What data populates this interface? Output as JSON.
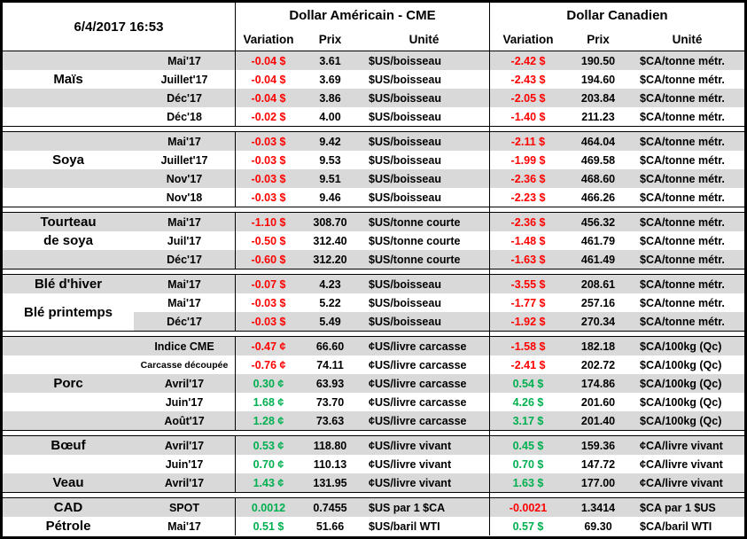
{
  "colors": {
    "negative": "#FF0000",
    "positive": "#00B050",
    "stripe": "#D9D9D9",
    "border": "#000000"
  },
  "chart_data": {
    "type": "table",
    "timestamp": "6/4/2017 16:53",
    "us_group": {
      "title": "Dollar Américain - CME",
      "cols": {
        "variation": "Variation",
        "prix": "Prix",
        "unite": "Unité"
      }
    },
    "ca_group": {
      "title": "Dollar Canadien",
      "cols": {
        "variation": "Variation",
        "prix": "Prix",
        "unite": "Unité"
      }
    },
    "sections": [
      {
        "id": "mais",
        "labels": [
          {
            "text": "Maïs",
            "row": 1,
            "span": 1
          }
        ],
        "rows": [
          {
            "month": "Mai'17",
            "us_var": "-0.04 $",
            "us_prix": "3.61",
            "us_unit": "$US/boisseau",
            "ca_var": "-2.42 $",
            "ca_prix": "190.50",
            "ca_unit": "$CA/tonne métr."
          },
          {
            "month": "Juillet'17",
            "us_var": "-0.04 $",
            "us_prix": "3.69",
            "us_unit": "$US/boisseau",
            "ca_var": "-2.43 $",
            "ca_prix": "194.60",
            "ca_unit": "$CA/tonne métr."
          },
          {
            "month": "Déc'17",
            "us_var": "-0.04 $",
            "us_prix": "3.86",
            "us_unit": "$US/boisseau",
            "ca_var": "-2.05 $",
            "ca_prix": "203.84",
            "ca_unit": "$CA/tonne métr."
          },
          {
            "month": "Déc'18",
            "us_var": "-0.02 $",
            "us_prix": "4.00",
            "us_unit": "$US/boisseau",
            "ca_var": "-1.40 $",
            "ca_prix": "211.23",
            "ca_unit": "$CA/tonne métr."
          }
        ]
      },
      {
        "id": "soya",
        "labels": [
          {
            "text": "Soya",
            "row": 1,
            "span": 1
          }
        ],
        "rows": [
          {
            "month": "Mai'17",
            "us_var": "-0.03 $",
            "us_prix": "9.42",
            "us_unit": "$US/boisseau",
            "ca_var": "-2.11 $",
            "ca_prix": "464.04",
            "ca_unit": "$CA/tonne métr."
          },
          {
            "month": "Juillet'17",
            "us_var": "-0.03 $",
            "us_prix": "9.53",
            "us_unit": "$US/boisseau",
            "ca_var": "-1.99 $",
            "ca_prix": "469.58",
            "ca_unit": "$CA/tonne métr."
          },
          {
            "month": "Nov'17",
            "us_var": "-0.03 $",
            "us_prix": "9.51",
            "us_unit": "$US/boisseau",
            "ca_var": "-2.36 $",
            "ca_prix": "468.60",
            "ca_unit": "$CA/tonne métr."
          },
          {
            "month": "Nov'18",
            "us_var": "-0.03 $",
            "us_prix": "9.46",
            "us_unit": "$US/boisseau",
            "ca_var": "-2.23 $",
            "ca_prix": "466.26",
            "ca_unit": "$CA/tonne métr."
          }
        ]
      },
      {
        "id": "tourteau",
        "labels": [
          {
            "text": "Tourteau",
            "row": 0,
            "span": 1
          },
          {
            "text": "de soya",
            "row": 1,
            "span": 1
          }
        ],
        "rows": [
          {
            "month": "Mai'17",
            "us_var": "-1.10 $",
            "us_prix": "308.70",
            "us_unit": "$US/tonne courte",
            "ca_var": "-2.36 $",
            "ca_prix": "456.32",
            "ca_unit": "$CA/tonne métr."
          },
          {
            "month": "Juil'17",
            "us_var": "-0.50 $",
            "us_prix": "312.40",
            "us_unit": "$US/tonne courte",
            "ca_var": "-1.48 $",
            "ca_prix": "461.79",
            "ca_unit": "$CA/tonne métr."
          },
          {
            "month": "Déc'17",
            "us_var": "-0.60 $",
            "us_prix": "312.20",
            "us_unit": "$US/tonne courte",
            "ca_var": "-1.63 $",
            "ca_prix": "461.49",
            "ca_unit": "$CA/tonne métr."
          }
        ]
      },
      {
        "id": "ble",
        "labels": [
          {
            "text": "Blé d'hiver",
            "row": 0,
            "span": 1
          },
          {
            "text": "Blé printemps",
            "row": 1,
            "span": 2
          }
        ],
        "rows": [
          {
            "month": "Mai'17",
            "us_var": "-0.07 $",
            "us_prix": "4.23",
            "us_unit": "$US/boisseau",
            "ca_var": "-3.55 $",
            "ca_prix": "208.61",
            "ca_unit": "$CA/tonne métr."
          },
          {
            "month": "Mai'17",
            "us_var": "-0.03 $",
            "us_prix": "5.22",
            "us_unit": "$US/boisseau",
            "ca_var": "-1.77 $",
            "ca_prix": "257.16",
            "ca_unit": "$CA/tonne métr."
          },
          {
            "month": "Déc'17",
            "us_var": "-0.03 $",
            "us_prix": "5.49",
            "us_unit": "$US/boisseau",
            "ca_var": "-1.92 $",
            "ca_prix": "270.34",
            "ca_unit": "$CA/tonne métr."
          }
        ]
      },
      {
        "id": "porc",
        "labels": [
          {
            "text": "Porc",
            "row": 2,
            "span": 1
          }
        ],
        "rows": [
          {
            "month": "Indice CME",
            "us_var": "-0.47 ¢",
            "us_prix": "66.60",
            "us_unit": "¢US/livre carcasse",
            "ca_var": "-1.58 $",
            "ca_prix": "182.18",
            "ca_unit": "$CA/100kg (Qc)"
          },
          {
            "month": "Carcasse découpée",
            "us_var": "-0.76 ¢",
            "us_prix": "74.11",
            "us_unit": "¢US/livre carcasse",
            "ca_var": "-2.41 $",
            "ca_prix": "202.72",
            "ca_unit": "$CA/100kg (Qc)"
          },
          {
            "month": "Avril'17",
            "us_var": "0.30 ¢",
            "us_prix": "63.93",
            "us_unit": "¢US/livre carcasse",
            "ca_var": "0.54 $",
            "ca_prix": "174.86",
            "ca_unit": "$CA/100kg (Qc)"
          },
          {
            "month": "Juin'17",
            "us_var": "1.68 ¢",
            "us_prix": "73.70",
            "us_unit": "¢US/livre carcasse",
            "ca_var": "4.26 $",
            "ca_prix": "201.60",
            "ca_unit": "$CA/100kg (Qc)"
          },
          {
            "month": "Août'17",
            "us_var": "1.28 ¢",
            "us_prix": "73.63",
            "us_unit": "¢US/livre carcasse",
            "ca_var": "3.17 $",
            "ca_prix": "201.40",
            "ca_unit": "$CA/100kg (Qc)"
          }
        ]
      },
      {
        "id": "boeuf-veau",
        "labels": [
          {
            "text": "Bœuf",
            "row": 0,
            "span": 1
          },
          {
            "text": "Veau",
            "row": 2,
            "span": 1
          }
        ],
        "rows": [
          {
            "month": "Avril'17",
            "us_var": "0.53 ¢",
            "us_prix": "118.80",
            "us_unit": "¢US/livre vivant",
            "ca_var": "0.45 $",
            "ca_prix": "159.36",
            "ca_unit": "¢CA/livre vivant"
          },
          {
            "month": "Juin'17",
            "us_var": "0.70 ¢",
            "us_prix": "110.13",
            "us_unit": "¢US/livre vivant",
            "ca_var": "0.70 $",
            "ca_prix": "147.72",
            "ca_unit": "¢CA/livre vivant"
          },
          {
            "month": "Avril'17",
            "us_var": "1.43 ¢",
            "us_prix": "131.95",
            "us_unit": "¢US/livre vivant",
            "ca_var": "1.63 $",
            "ca_prix": "177.00",
            "ca_unit": "¢CA/livre vivant"
          }
        ]
      },
      {
        "id": "cad-petrole",
        "labels": [
          {
            "text": "CAD",
            "row": 0,
            "span": 1
          },
          {
            "text": "Pétrole",
            "row": 1,
            "span": 1
          }
        ],
        "rows": [
          {
            "month": "SPOT",
            "us_var": "0.0012",
            "us_prix": "0.7455",
            "us_unit": "$US par 1 $CA",
            "ca_var": "-0.0021",
            "ca_prix": "1.3414",
            "ca_unit": "$CA par 1 $US"
          },
          {
            "month": "Mai'17",
            "us_var": "0.51 $",
            "us_prix": "51.66",
            "us_unit": "$US/baril WTI",
            "ca_var": "0.57 $",
            "ca_prix": "69.30",
            "ca_unit": "$CA/baril WTI"
          }
        ]
      }
    ]
  }
}
